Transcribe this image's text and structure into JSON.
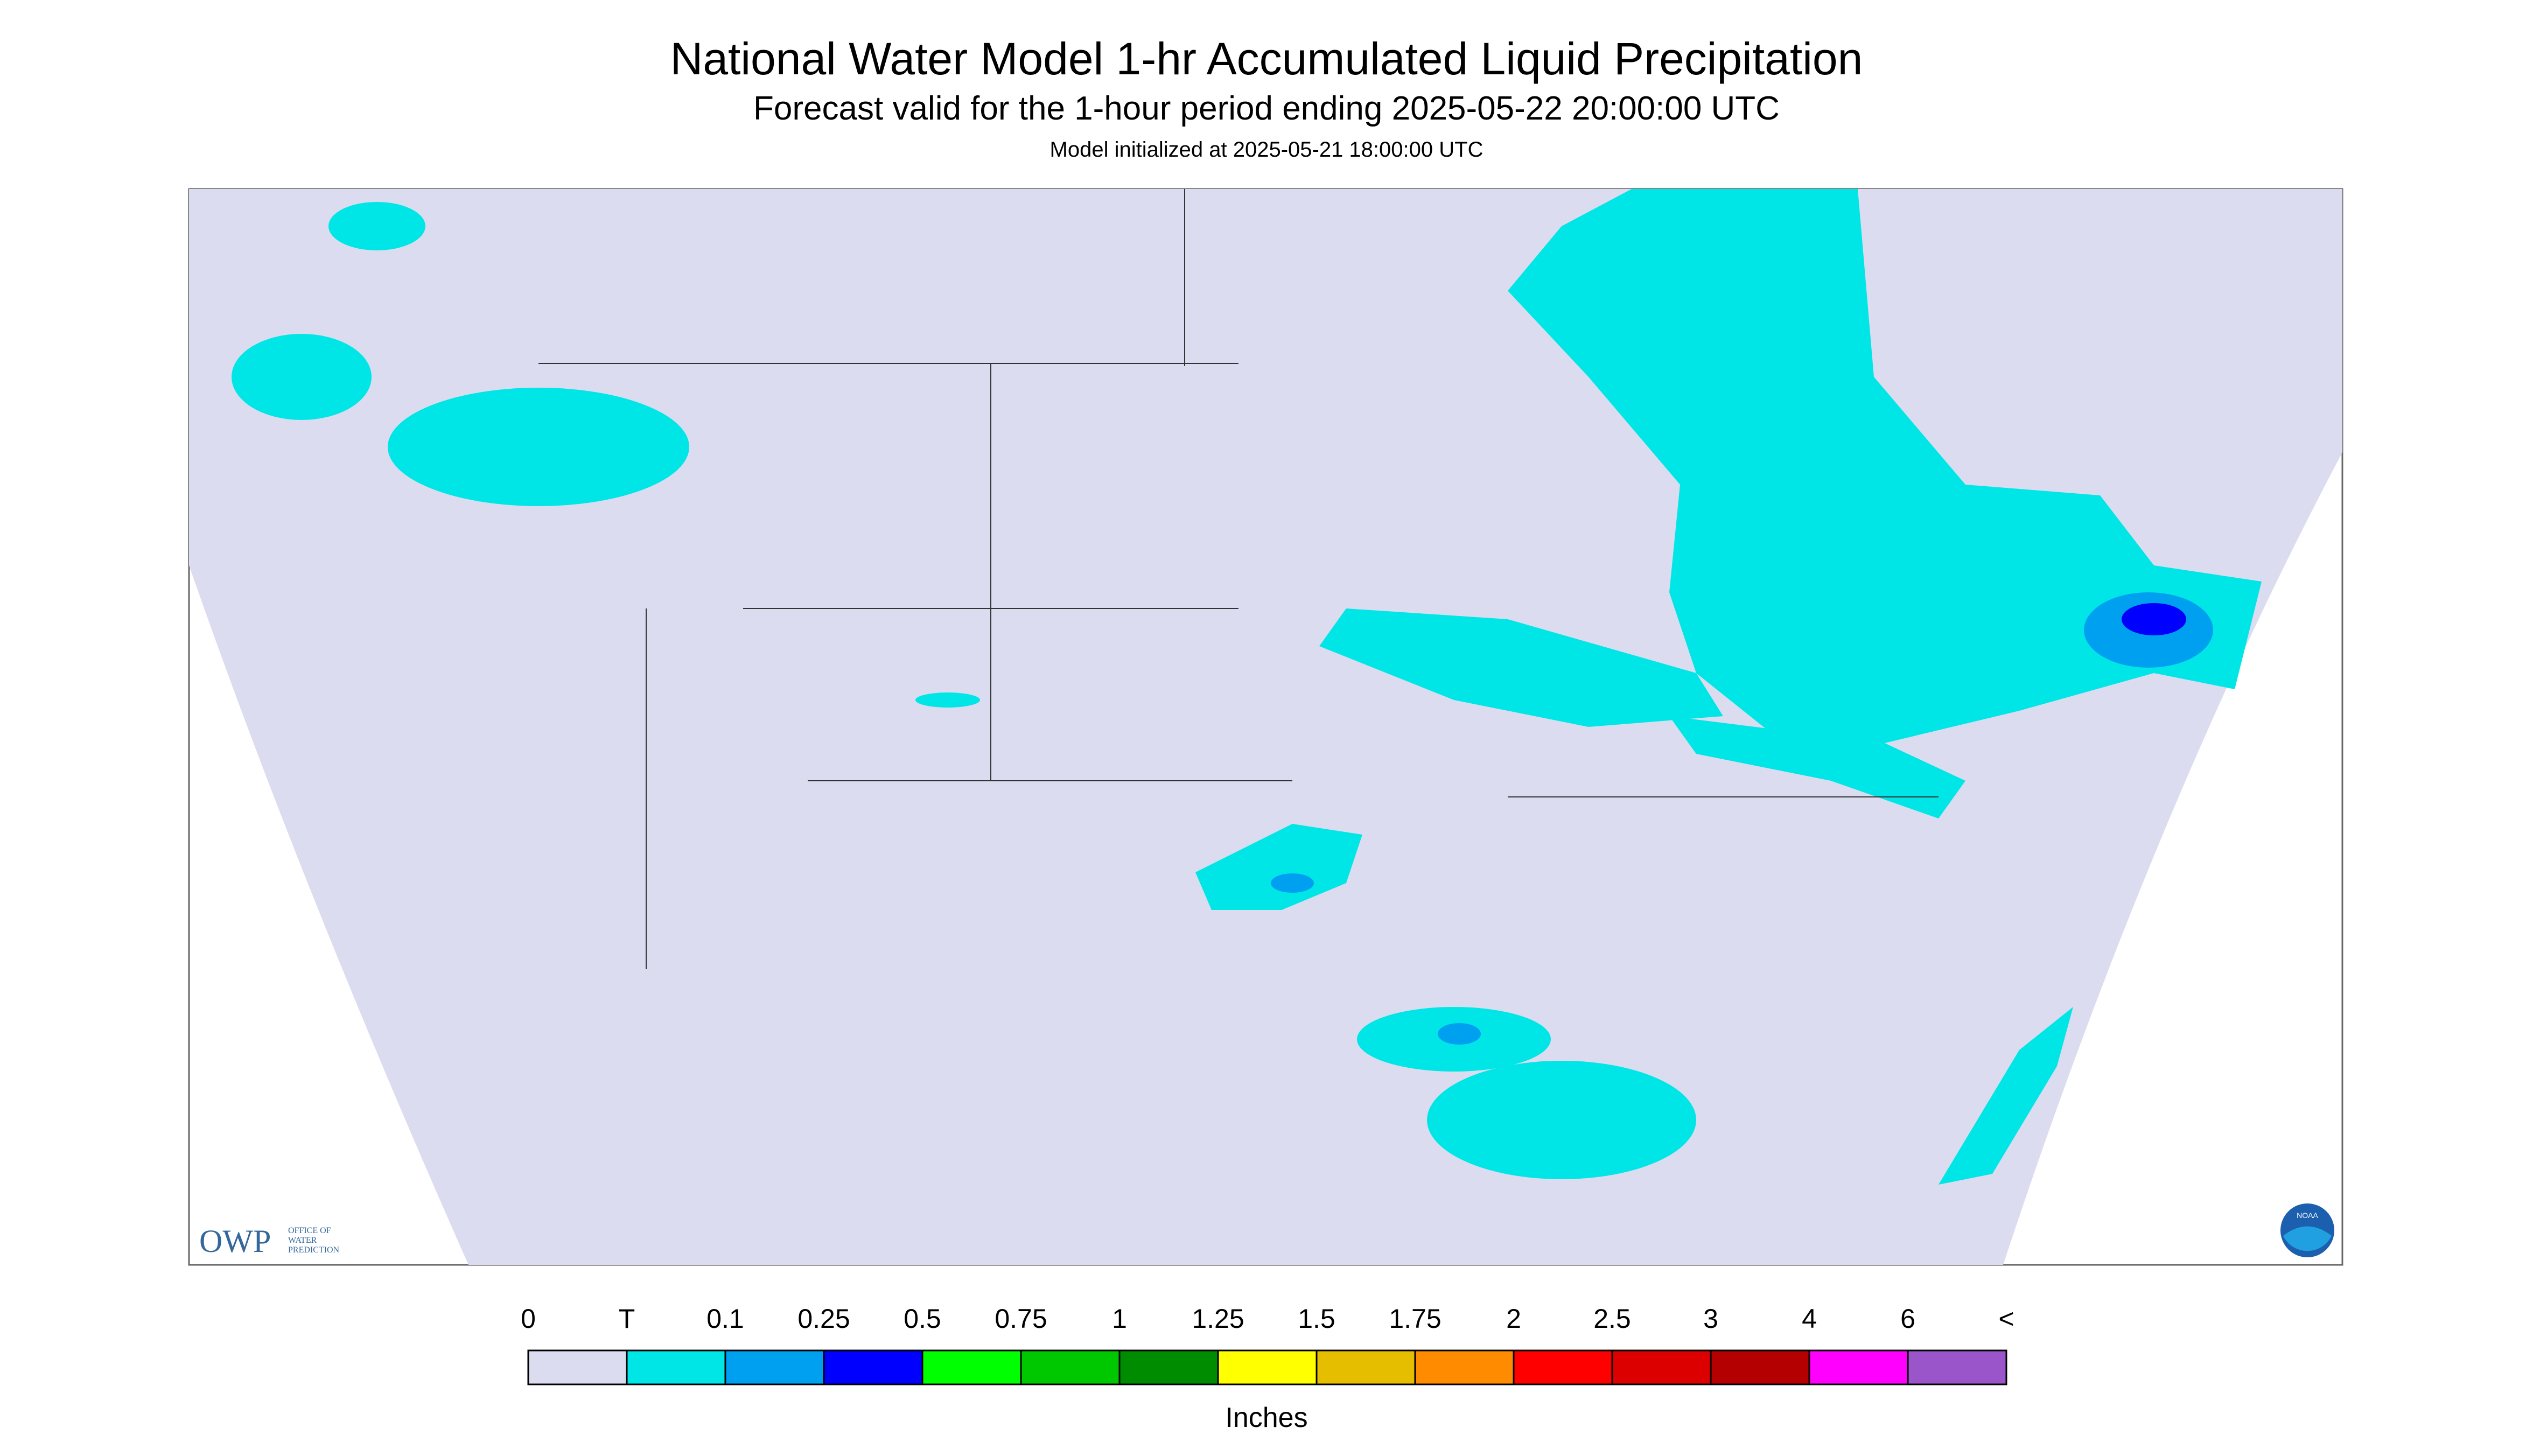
{
  "header": {
    "title": "National Water Model 1-hr Accumulated Liquid Precipitation",
    "subtitle": "Forecast valid for the 1-hour period ending 2025-05-22 20:00:00 UTC",
    "init": "Model initialized at 2025-05-21 18:00:00 UTC"
  },
  "logos": {
    "owp": "OWP",
    "owp_text": [
      "OFFICE OF",
      "WATER",
      "PREDICTION"
    ],
    "noaa": "NOAA"
  },
  "legend": {
    "labels": [
      "0",
      "T",
      "0.1",
      "0.25",
      "0.5",
      "0.75",
      "1",
      "1.25",
      "1.5",
      "1.75",
      "2",
      "2.5",
      "3",
      "4",
      "6",
      "<"
    ],
    "colors": [
      "#dcdcf0",
      "#00e6e6",
      "#00a0f0",
      "#0000ff",
      "#00ff00",
      "#00c800",
      "#008c00",
      "#ffff00",
      "#e6be00",
      "#ff8c00",
      "#ff0000",
      "#dc0000",
      "#b40000",
      "#ff00ff",
      "#9955c9"
    ],
    "unit": "Inches"
  }
}
